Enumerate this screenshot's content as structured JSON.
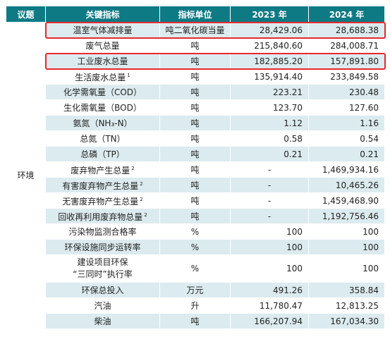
{
  "headers": [
    "议题",
    "关键指标",
    "指标单位",
    "2023 年",
    "2024 年"
  ],
  "topic": "环境",
  "rows": [
    {
      "name": "温室气体减排量",
      "sup": "",
      "unit": "吨二氧化碳当量",
      "v2023": "28,429.06",
      "v2024": "28,688.38",
      "highlight": true
    },
    {
      "name": "废气总量",
      "sup": "",
      "unit": "吨",
      "v2023": "215,840.60",
      "v2024": "284,008.71",
      "highlight": false
    },
    {
      "name": "工业废水总量",
      "sup": "",
      "unit": "吨",
      "v2023": "182,885.20",
      "v2024": "157,891.80",
      "highlight": true
    },
    {
      "name": "生活废水总量",
      "sup": "1",
      "unit": "吨",
      "v2023": "135,914.40",
      "v2024": "233,849.58",
      "highlight": false
    },
    {
      "name": "化学需氧量（COD）",
      "sup": "",
      "unit": "吨",
      "v2023": "223.21",
      "v2024": "230.48",
      "highlight": false
    },
    {
      "name": "生化需氧量（BOD）",
      "sup": "",
      "unit": "吨",
      "v2023": "123.70",
      "v2024": "127.60",
      "highlight": false
    },
    {
      "name": "氨氮（NH₃-N）",
      "sup": "",
      "unit": "吨",
      "v2023": "1.12",
      "v2024": "1.16",
      "highlight": false
    },
    {
      "name": "总氮（TN）",
      "sup": "",
      "unit": "吨",
      "v2023": "0.58",
      "v2024": "0.54",
      "highlight": false
    },
    {
      "name": "总磷（TP）",
      "sup": "",
      "unit": "吨",
      "v2023": "0.21",
      "v2024": "0.21",
      "highlight": false
    },
    {
      "name": "废弃物产生总量",
      "sup": "2",
      "unit": "吨",
      "v2023": "-",
      "v2024": "1,469,934.16",
      "highlight": false
    },
    {
      "name": "有害废弃物产生总量",
      "sup": "2",
      "unit": "吨",
      "v2023": "-",
      "v2024": "10,465.26",
      "highlight": false
    },
    {
      "name": "无害废弃物产生总量",
      "sup": "2",
      "unit": "吨",
      "v2023": "-",
      "v2024": "1,459,468.90",
      "highlight": false
    },
    {
      "name": "回收再利用废弃物总量",
      "sup": "2",
      "unit": "吨",
      "v2023": "-",
      "v2024": "1,192,756.46",
      "highlight": false
    },
    {
      "name": "污染物监测合格率",
      "sup": "",
      "unit": "%",
      "v2023": "100",
      "v2024": "100",
      "highlight": false
    },
    {
      "name": "环保设施同步运转率",
      "sup": "",
      "unit": "%",
      "v2023": "100",
      "v2024": "100",
      "highlight": false
    },
    {
      "name": "建设项目环保\n“三同时”执行率",
      "sup": "",
      "unit": "%",
      "v2023": "100",
      "v2024": "100",
      "highlight": false,
      "multiline": true
    },
    {
      "name": "环保总投入",
      "sup": "",
      "unit": "万元",
      "v2023": "491.26",
      "v2024": "358.84",
      "highlight": false
    },
    {
      "name": "汽油",
      "sup": "",
      "unit": "升",
      "v2023": "11,780.47",
      "v2024": "12,813.25",
      "highlight": false
    },
    {
      "name": "柴油",
      "sup": "",
      "unit": "吨",
      "v2023": "166,207.94",
      "v2024": "167,034.30",
      "highlight": false
    }
  ],
  "colors": {
    "header": "#0d7a84",
    "stripe": "#dcebef",
    "highlight": "#e8282e"
  }
}
